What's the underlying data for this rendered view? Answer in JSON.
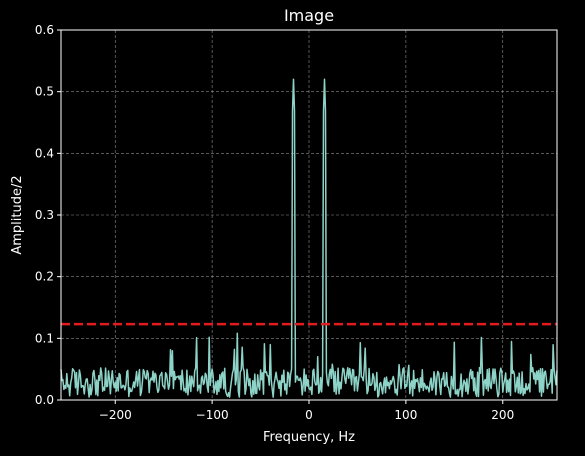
{
  "chart_data": {
    "type": "line",
    "title": "Image",
    "xlabel": "Frequency, Hz",
    "ylabel": "Amplitude/2",
    "xlim": [
      -256,
      256
    ],
    "ylim": [
      0,
      0.6
    ],
    "x_ticks": [
      -200,
      -100,
      0,
      100,
      200
    ],
    "x_tick_labels": [
      "−200",
      "−100",
      "0",
      "100",
      "200"
    ],
    "y_ticks": [
      0.0,
      0.1,
      0.2,
      0.3,
      0.4,
      0.5,
      0.6
    ],
    "y_tick_labels": [
      "0.0",
      "0.1",
      "0.2",
      "0.3",
      "0.4",
      "0.5",
      "0.6"
    ],
    "grid": true,
    "series": [
      {
        "style": "solid",
        "color": "#8dd3c7",
        "peaks": [
          {
            "x": -16,
            "y": 0.52
          },
          {
            "x": 16,
            "y": 0.52
          }
        ],
        "noise_floor_typical": 0.03,
        "noise_floor_max": 0.11,
        "x_step": 1
      },
      {
        "style": "dashed",
        "color": "#e41a1c",
        "y": 0.123
      }
    ]
  },
  "colors": {
    "background": "#000000",
    "axes_face": "#000000",
    "axes_edge": "#ffffff",
    "grid": "#b0b0b0",
    "text": "#ffffff",
    "spectrum": "#8dd3c7",
    "threshold": "#e41a1c"
  }
}
